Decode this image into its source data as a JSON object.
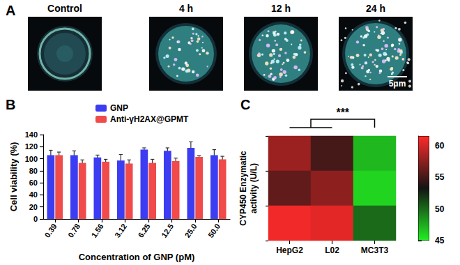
{
  "panels": [
    "A",
    "B",
    "C"
  ],
  "images": {
    "labels": [
      "Control",
      "4 h",
      "12 h",
      "24 h"
    ],
    "scale_bar": "5μm"
  },
  "chart_data": [
    {
      "type": "bar",
      "categories": [
        "0.39",
        "0.78",
        "1.56",
        "3.12",
        "6.25",
        "12.5",
        "25.0",
        "50.0"
      ],
      "series": [
        {
          "name": "GNP",
          "color": "#3c3cf2",
          "values": [
            106,
            106,
            102,
            97,
            115,
            113,
            118,
            106
          ],
          "errors": [
            8,
            7,
            4,
            10,
            3,
            5,
            10,
            9
          ]
        },
        {
          "name": "Anti-γH2AX@GPMT",
          "color": "#f04a4a",
          "values": [
            106,
            93,
            95,
            92,
            93,
            96,
            103,
            99
          ],
          "errors": [
            5,
            5,
            4,
            6,
            6,
            5,
            2,
            5
          ]
        }
      ],
      "xlabel": "Concentration of GNP (pM)",
      "ylabel": "Cell viability (%)",
      "ylim": [
        0,
        140
      ],
      "yticks": [
        0,
        20,
        40,
        60,
        80,
        100,
        120,
        140
      ],
      "legend": "upper left",
      "grid": false
    },
    {
      "type": "heatmap",
      "categories": [
        "HepG2",
        "L02",
        "MC3T3"
      ],
      "rows": [
        null,
        null,
        null
      ],
      "values": [
        [
          58,
          55,
          47
        ],
        [
          56,
          57.5,
          46
        ],
        [
          61,
          60.5,
          50
        ]
      ],
      "ylabel": "CYP450 Enzymatic\nactivity (U/L)",
      "colorbar": {
        "range": [
          45,
          61.5
        ],
        "ticks": [
          45,
          50,
          55,
          60
        ]
      },
      "annotation": {
        "label": "***",
        "groups": [
          [
            "HepG2",
            "L02"
          ],
          [
            "MC3T3"
          ]
        ]
      }
    }
  ]
}
